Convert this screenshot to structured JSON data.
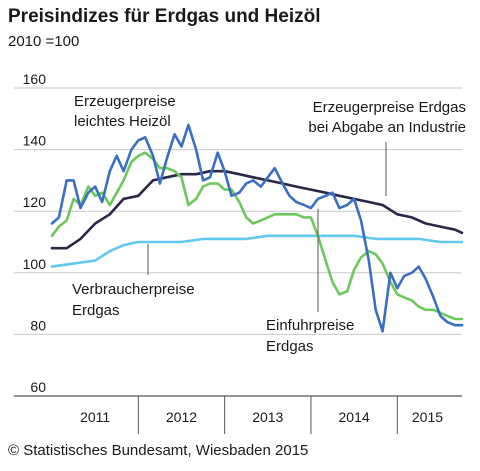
{
  "header": {
    "title": "Preisindizes für Erdgas und Heizöl",
    "subtitle": "2010 =100"
  },
  "footer": {
    "source": "© Statistisches Bundesamt, Wiesbaden 2015"
  },
  "chart_data": {
    "type": "line",
    "title": "Preisindizes für Erdgas und Heizöl",
    "subtitle": "2010 =100",
    "xlabel": "",
    "ylabel": "",
    "ylim": [
      60,
      160
    ],
    "yticks": [
      60,
      80,
      100,
      120,
      140,
      160
    ],
    "xlim": [
      2011.0,
      2015.75
    ],
    "xticks": [
      {
        "label": "2011",
        "center": 2011.5
      },
      {
        "label": "2012",
        "center": 2012.5
      },
      {
        "label": "2013",
        "center": 2013.5
      },
      {
        "label": "2014",
        "center": 2014.5
      },
      {
        "label": "2015",
        "center": 2015.35
      }
    ],
    "year_boundaries": [
      2012,
      2013,
      2014,
      2015
    ],
    "grid": "horizontal",
    "series": [
      {
        "name": "Erzeugerpreise leichtes Heizöl",
        "color": "#3a6fc4",
        "annotation": [
          "Erzeugerpreise",
          "leichtes Heizöl"
        ],
        "x": [
          2011.0,
          2011.08,
          2011.17,
          2011.25,
          2011.33,
          2011.42,
          2011.5,
          2011.58,
          2011.67,
          2011.75,
          2011.83,
          2011.92,
          2012.0,
          2012.08,
          2012.17,
          2012.25,
          2012.33,
          2012.42,
          2012.5,
          2012.58,
          2012.67,
          2012.75,
          2012.83,
          2012.92,
          2013.0,
          2013.08,
          2013.17,
          2013.25,
          2013.33,
          2013.42,
          2013.5,
          2013.58,
          2013.67,
          2013.75,
          2013.83,
          2013.92,
          2014.0,
          2014.08,
          2014.17,
          2014.25,
          2014.33,
          2014.42,
          2014.5,
          2014.58,
          2014.67,
          2014.75,
          2014.83,
          2014.92,
          2015.0,
          2015.08,
          2015.17,
          2015.25,
          2015.33,
          2015.42,
          2015.5,
          2015.58,
          2015.67,
          2015.75
        ],
        "values": [
          116,
          118,
          130,
          130,
          121,
          126,
          128,
          123,
          133,
          138,
          133,
          140,
          143,
          144,
          138,
          129,
          137,
          145,
          141,
          148,
          140,
          130,
          131,
          139,
          133,
          125,
          126,
          129,
          130,
          128,
          131,
          134,
          129,
          125,
          123,
          122,
          121,
          124,
          125,
          126,
          121,
          122,
          124,
          117,
          104,
          88,
          81,
          100,
          95,
          99,
          100,
          102,
          98,
          92,
          86,
          84,
          83,
          83
        ],
        "label": "Erzeugerpreise leichtes Heizöl"
      },
      {
        "name": "Einfuhrpreise Erdgas",
        "color": "#6cc85a",
        "annotation": [
          "Einfuhrpreise",
          "Erdgas"
        ],
        "x": [
          2011.0,
          2011.08,
          2011.17,
          2011.25,
          2011.33,
          2011.42,
          2011.5,
          2011.58,
          2011.67,
          2011.75,
          2011.83,
          2011.92,
          2012.0,
          2012.08,
          2012.17,
          2012.25,
          2012.33,
          2012.42,
          2012.5,
          2012.58,
          2012.67,
          2012.75,
          2012.83,
          2012.92,
          2013.0,
          2013.08,
          2013.17,
          2013.25,
          2013.33,
          2013.42,
          2013.5,
          2013.58,
          2013.67,
          2013.75,
          2013.83,
          2013.92,
          2014.0,
          2014.08,
          2014.17,
          2014.25,
          2014.33,
          2014.42,
          2014.5,
          2014.58,
          2014.67,
          2014.75,
          2014.83,
          2014.92,
          2015.0,
          2015.08,
          2015.17,
          2015.25,
          2015.33,
          2015.42,
          2015.5,
          2015.58,
          2015.67,
          2015.75
        ],
        "values": [
          112,
          115,
          117,
          124,
          122,
          128,
          125,
          126,
          122,
          126,
          130,
          136,
          138,
          139,
          137,
          134,
          134,
          133,
          131,
          122,
          124,
          128,
          129,
          129,
          127,
          127,
          123,
          118,
          116,
          117,
          118,
          119,
          119,
          119,
          119,
          118,
          118,
          112,
          104,
          97,
          93,
          94,
          101,
          105,
          107,
          106,
          103,
          97,
          93,
          92,
          91,
          89,
          88,
          88,
          87,
          86,
          85,
          85
        ],
        "label": "Einfuhrpreise Erdgas"
      },
      {
        "name": "Erzeugerpreise Erdgas bei Abgabe an Industrie",
        "color": "#2a2748",
        "annotation": [
          "Erzeugerpreise Erdgas",
          "bei Abgabe an Industrie"
        ],
        "x": [
          2011.0,
          2011.17,
          2011.33,
          2011.5,
          2011.67,
          2011.83,
          2012.0,
          2012.17,
          2012.33,
          2012.5,
          2012.67,
          2012.83,
          2013.0,
          2013.17,
          2013.33,
          2013.5,
          2013.67,
          2013.83,
          2014.0,
          2014.17,
          2014.33,
          2014.5,
          2014.67,
          2014.83,
          2015.0,
          2015.17,
          2015.33,
          2015.5,
          2015.67,
          2015.75
        ],
        "values": [
          108,
          108,
          111,
          116,
          119,
          124,
          125,
          130,
          131,
          132,
          132,
          133,
          133,
          132,
          131,
          130,
          129,
          128,
          127,
          126,
          125,
          124,
          123,
          122,
          119,
          118,
          116,
          115,
          114,
          113
        ],
        "label": "Erzeugerpreise Erdgas bei Abgabe an Industrie"
      },
      {
        "name": "Verbraucherpreise Erdgas",
        "color": "#62c8ee",
        "annotation": [
          "Verbraucherpreise",
          "Erdgas"
        ],
        "x": [
          2011.0,
          2011.25,
          2011.5,
          2011.67,
          2011.83,
          2012.0,
          2012.25,
          2012.5,
          2012.75,
          2013.0,
          2013.25,
          2013.5,
          2013.75,
          2014.0,
          2014.25,
          2014.5,
          2014.75,
          2015.0,
          2015.25,
          2015.5,
          2015.75
        ],
        "values": [
          102,
          103,
          104,
          107,
          109,
          110,
          110,
          110,
          111,
          111,
          111,
          112,
          112,
          112,
          112,
          112,
          111,
          111,
          111,
          110,
          110
        ],
        "label": "Verbraucherpreise Erdgas"
      }
    ]
  }
}
